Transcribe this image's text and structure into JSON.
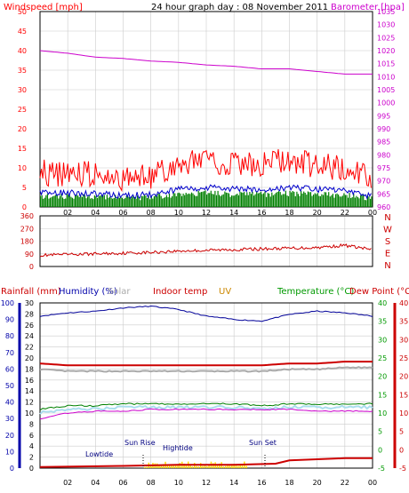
{
  "header": {
    "title": "24 hour graph day : 08 November 2011",
    "left_label": "Windspeed [mph]",
    "right_label": "Barometer [hpa]"
  },
  "colors": {
    "wind": "#ff0000",
    "gust": "#ff0000",
    "avg": "#0000cc",
    "green": "#008000",
    "baro": "#cc00cc",
    "dir": "#cc0000",
    "hum": "#000099",
    "indoor": "#cc0000",
    "uv": "#cc8800",
    "temp": "#008000",
    "dew": "#cc0000",
    "solar": "#aaaaaa",
    "rain_axis": "#cc0000",
    "hum_axis": "#0000aa",
    "temp_axis": "#009900",
    "dew_axis": "#cc0000",
    "grid": "#cccccc",
    "feels": "#cc00cc",
    "pale": "#aaddee",
    "rainbar": "#ffdd00",
    "event": "#000080"
  },
  "x_ticks": [
    "02",
    "04",
    "06",
    "08",
    "10",
    "12",
    "14",
    "16",
    "18",
    "20",
    "22",
    "00"
  ],
  "panel1": {
    "left_ticks": [
      "50",
      "45",
      "40",
      "35",
      "30",
      "25",
      "20",
      "15",
      "10",
      "5",
      "0"
    ],
    "right_ticks": [
      "1035",
      "1030",
      "1025",
      "1020",
      "1015",
      "1010",
      "1005",
      "1000",
      "995",
      "990",
      "985",
      "980",
      "975",
      "970",
      "965",
      "960"
    ]
  },
  "panel2": {
    "left_ticks": [
      "360",
      "270",
      "180",
      "90",
      "0"
    ],
    "compass": [
      "N",
      "W",
      "S",
      "E",
      "N"
    ]
  },
  "panel3": {
    "labels": {
      "rainfall": "Rainfall (mm)",
      "humidity": "Humidity (%)",
      "solar": "Solar",
      "indoor": "Indoor temp",
      "uv": "UV",
      "temperature": "Temperature (°C)",
      "dewpoint": "Dew Point (°C)"
    },
    "hum_ticks": [
      "100",
      "90",
      "80",
      "70",
      "60",
      "50",
      "40",
      "30",
      "20",
      "10",
      "0"
    ],
    "rain_ticks": [
      "30",
      "28",
      "26",
      "24",
      "22",
      "20",
      "18",
      "16",
      "14",
      "12",
      "10",
      "8",
      "6",
      "4",
      "2",
      "0"
    ],
    "temp_ticks": [
      "40",
      "35",
      "30",
      "25",
      "20",
      "15",
      "10",
      "5",
      "0",
      "-5"
    ],
    "dew_ticks": [
      "40",
      "35",
      "30",
      "25",
      "20",
      "15",
      "10",
      "5",
      "0",
      "-5"
    ],
    "events": {
      "lowtide": "Lowtide",
      "sunrise": "Sun Rise",
      "hightide": "Hightide",
      "sunset": "Sun Set"
    }
  },
  "chart_data": [
    {
      "type": "line",
      "title": "24 hour graph day : 08 November 2011",
      "ylabel": "Windspeed [mph]",
      "y2label": "Barometer [hpa]",
      "x_unit": "hour",
      "xlim": [
        0,
        24
      ],
      "ylim": [
        0,
        50
      ],
      "y2lim": [
        960,
        1035
      ],
      "series": [
        {
          "name": "Windspeed",
          "axis": "left",
          "color": "#ff0000",
          "x": [
            0,
            2,
            4,
            6,
            8,
            10,
            12,
            14,
            16,
            18,
            20,
            22,
            24
          ],
          "y": [
            8,
            8,
            7.5,
            6.5,
            7,
            10,
            11,
            10,
            10,
            11,
            10,
            9,
            6
          ]
        },
        {
          "name": "Barometer",
          "axis": "right",
          "color": "#cc00cc",
          "x": [
            0,
            2,
            4,
            6,
            8,
            10,
            12,
            14,
            16,
            18,
            20,
            22,
            24
          ],
          "y": [
            1020,
            1019,
            1017.5,
            1017,
            1016,
            1015.5,
            1014.5,
            1014,
            1013,
            1013,
            1012,
            1011,
            1011
          ]
        }
      ]
    },
    {
      "type": "line",
      "x_unit": "hour",
      "xlim": [
        0,
        24
      ],
      "ylim": [
        0,
        360
      ],
      "series": [
        {
          "name": "Wind direction",
          "color": "#cc0000",
          "x": [
            0,
            2,
            4,
            6,
            8,
            10,
            12,
            14,
            16,
            18,
            20,
            22,
            24
          ],
          "y": [
            80,
            85,
            90,
            95,
            100,
            110,
            115,
            120,
            125,
            130,
            135,
            150,
            120
          ]
        }
      ]
    },
    {
      "type": "line",
      "x_unit": "hour",
      "xlim": [
        0,
        24
      ],
      "ylabel": "Humidity (%)",
      "y2label": "Temperature (°C)",
      "ylim": [
        0,
        100
      ],
      "y2lim": [
        -5,
        40
      ],
      "series": [
        {
          "name": "Humidity (%)",
          "axis": "humidity",
          "color": "#000099",
          "x": [
            0,
            2,
            4,
            6,
            8,
            10,
            12,
            14,
            16,
            18,
            20,
            22,
            24
          ],
          "y": [
            92,
            94,
            95,
            97,
            98,
            96,
            92,
            90,
            89,
            93,
            95,
            94,
            92
          ]
        },
        {
          "name": "Indoor temp",
          "axis": "temperature",
          "color": "#cc0000",
          "x": [
            0,
            2,
            4,
            6,
            8,
            10,
            12,
            14,
            16,
            18,
            20,
            22,
            24
          ],
          "y": [
            23.5,
            23,
            23,
            23,
            23,
            23,
            23,
            23,
            23,
            23.5,
            23.5,
            24,
            24
          ]
        },
        {
          "name": "Temperature (°C)",
          "axis": "temperature",
          "color": "#008000",
          "x": [
            0,
            2,
            4,
            6,
            8,
            10,
            12,
            14,
            16,
            18,
            20,
            22,
            24
          ],
          "y": [
            11,
            12,
            12,
            12.5,
            12.5,
            12.5,
            12.5,
            12.5,
            12,
            12.5,
            12.5,
            12.5,
            12.5
          ]
        },
        {
          "name": "Dew Point (°C)",
          "axis": "temperature",
          "color": "#cc00cc",
          "x": [
            0,
            2,
            4,
            6,
            8,
            10,
            12,
            14,
            16,
            18,
            20,
            22,
            24
          ],
          "y": [
            8.5,
            10,
            10.5,
            10.5,
            11,
            11,
            11,
            11,
            11,
            11,
            10.5,
            10.5,
            10.5
          ]
        }
      ]
    }
  ]
}
